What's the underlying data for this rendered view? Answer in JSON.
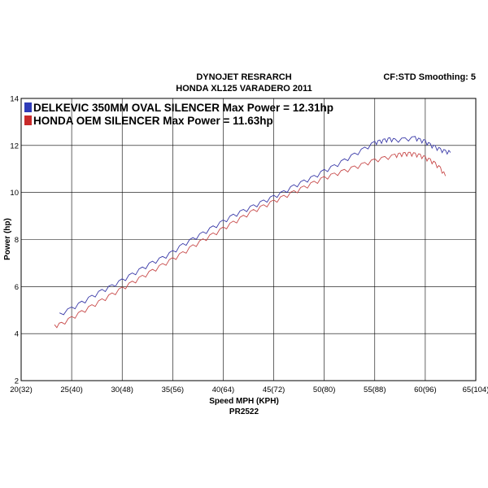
{
  "chart_data": {
    "type": "line",
    "title": "DYNOJET RESRARCH",
    "subtitle": "HONDA XL125 VARADERO 2011",
    "corner_label": "CF:STD Smoothing: 5",
    "xlabel": "Speed MPH (KPH)",
    "ylabel": "Power (hp)",
    "footer": "PR2522",
    "xlim": [
      20,
      65
    ],
    "ylim": [
      2,
      14
    ],
    "x_ticks": [
      {
        "value": 20,
        "label": "20(32)"
      },
      {
        "value": 25,
        "label": "25(40)"
      },
      {
        "value": 30,
        "label": "30(48)"
      },
      {
        "value": 35,
        "label": "35(56)"
      },
      {
        "value": 40,
        "label": "40(64)"
      },
      {
        "value": 45,
        "label": "45(72)"
      },
      {
        "value": 50,
        "label": "50(80)"
      },
      {
        "value": 55,
        "label": "55(88)"
      },
      {
        "value": 60,
        "label": "60(96)"
      },
      {
        "value": 65,
        "label": "65(104)"
      }
    ],
    "y_ticks": [
      {
        "value": 2,
        "label": "2"
      },
      {
        "value": 4,
        "label": "4"
      },
      {
        "value": 6,
        "label": "6"
      },
      {
        "value": 8,
        "label": "8"
      },
      {
        "value": 10,
        "label": "10"
      },
      {
        "value": 12,
        "label": "12"
      },
      {
        "value": 14,
        "label": "14"
      }
    ],
    "grid": true,
    "legend_position": "top-left",
    "series": [
      {
        "name": "DELKEVIC 350MM OVAL SILENCER  Max Power = 12.31hp",
        "color": "#3a3aa8",
        "x": [
          23.8,
          25,
          26,
          27,
          28,
          29,
          30,
          31,
          32,
          33,
          34,
          35,
          36,
          37,
          38,
          39,
          40,
          41,
          42,
          43,
          44,
          45,
          46,
          47,
          48,
          49,
          50,
          51,
          52,
          53,
          54,
          55,
          55.5,
          56,
          56.5,
          57,
          58,
          59,
          59.5,
          60,
          60.5,
          61,
          61.5,
          62,
          62.5
        ],
        "y": [
          4.8,
          5.05,
          5.3,
          5.55,
          5.8,
          6.0,
          6.25,
          6.5,
          6.75,
          7.0,
          7.2,
          7.45,
          7.75,
          8.0,
          8.25,
          8.5,
          8.75,
          9.0,
          9.2,
          9.4,
          9.6,
          9.8,
          10.0,
          10.25,
          10.45,
          10.65,
          10.9,
          11.1,
          11.35,
          11.6,
          11.85,
          12.1,
          12.15,
          12.2,
          12.25,
          12.2,
          12.25,
          12.3,
          12.2,
          12.15,
          12.0,
          11.9,
          11.8,
          11.72,
          11.7
        ]
      },
      {
        "name": "HONDA OEM SILENCER Max Power = 11.63hp",
        "color": "#c84a4a",
        "x": [
          23.3,
          24,
          25,
          26,
          27,
          28,
          29,
          30,
          31,
          32,
          33,
          34,
          35,
          36,
          37,
          38,
          39,
          40,
          41,
          42,
          43,
          44,
          45,
          46,
          47,
          48,
          49,
          50,
          51,
          52,
          53,
          54,
          55,
          56,
          57,
          57.5,
          58,
          58.5,
          59,
          59.5,
          60,
          60.5,
          61,
          61.5,
          62
        ],
        "y": [
          4.3,
          4.4,
          4.65,
          4.9,
          5.15,
          5.4,
          5.65,
          5.9,
          6.15,
          6.4,
          6.65,
          6.9,
          7.15,
          7.4,
          7.7,
          7.95,
          8.2,
          8.45,
          8.7,
          8.95,
          9.2,
          9.4,
          9.6,
          9.8,
          10.0,
          10.2,
          10.4,
          10.6,
          10.75,
          10.9,
          11.05,
          11.2,
          11.35,
          11.45,
          11.55,
          11.6,
          11.62,
          11.63,
          11.6,
          11.55,
          11.45,
          11.35,
          11.2,
          11.0,
          10.7
        ]
      }
    ]
  }
}
